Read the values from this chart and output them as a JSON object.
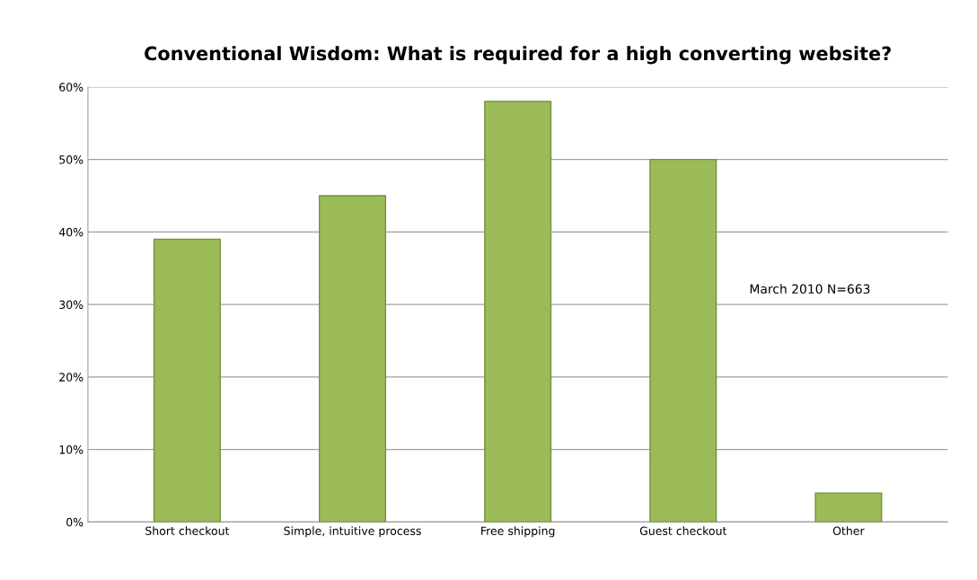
{
  "chart_data": {
    "type": "bar",
    "title": "Conventional Wisdom: What is required for a high converting website?",
    "categories": [
      "Short checkout",
      "Simple, intuitive process",
      "Free shipping",
      "Guest checkout",
      "Other"
    ],
    "values": [
      39,
      45,
      58,
      50,
      4
    ],
    "color": "#9bbb59",
    "ylim": [
      0,
      60
    ],
    "yticks": [
      {
        "value": 0,
        "label": "0%"
      },
      {
        "value": 10,
        "label": "10%"
      },
      {
        "value": 20,
        "label": "20%"
      },
      {
        "value": 30,
        "label": "30%"
      },
      {
        "value": 40,
        "label": "40%"
      },
      {
        "value": 50,
        "label": "50%"
      },
      {
        "value": 60,
        "label": "60%"
      }
    ],
    "grid": "y",
    "legend": false,
    "annotations": [
      "March 2010 N=663"
    ]
  }
}
